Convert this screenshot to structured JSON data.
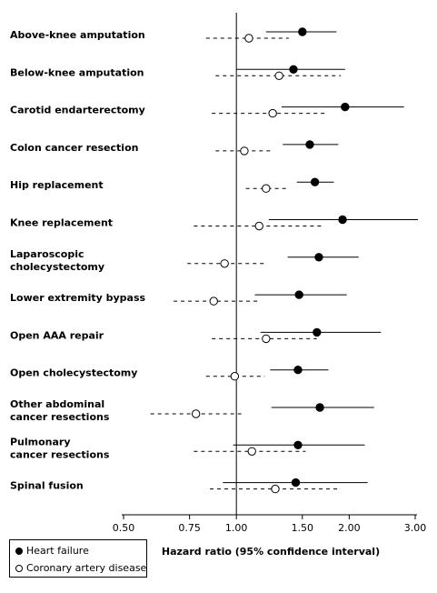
{
  "chart_data": {
    "type": "forest",
    "xlabel": "Hazard ratio (95% confidence interval)",
    "x_scale": "log",
    "xlim": [
      0.5,
      3.0
    ],
    "x_ticks": [
      {
        "value": 0.5,
        "label": "0.50"
      },
      {
        "value": 0.75,
        "label": "0.75"
      },
      {
        "value": 1.0,
        "label": "1.00"
      },
      {
        "value": 1.5,
        "label": "1.50"
      },
      {
        "value": 2.0,
        "label": "2.00"
      },
      {
        "value": 3.0,
        "label": "3.00"
      }
    ],
    "reference_line": 1.0,
    "legend_position": "bottom-left",
    "series": [
      {
        "name": "Heart failure",
        "marker": "filled-circle",
        "line": "solid"
      },
      {
        "name": "Coronary artery disease",
        "marker": "open-circle",
        "line": "dashed"
      }
    ],
    "rows": [
      {
        "label": [
          "Above-knee amputation"
        ],
        "hf": {
          "est": 1.5,
          "lo": 1.2,
          "hi": 1.85
        },
        "cad": {
          "est": 1.08,
          "lo": 0.83,
          "hi": 1.38
        }
      },
      {
        "label": [
          "Below-knee amputation"
        ],
        "hf": {
          "est": 1.42,
          "lo": 1.0,
          "hi": 1.95
        },
        "cad": {
          "est": 1.3,
          "lo": 0.88,
          "hi": 1.9
        }
      },
      {
        "label": [
          "Carotid endarterectomy"
        ],
        "hf": {
          "est": 1.95,
          "lo": 1.32,
          "hi": 2.8
        },
        "cad": {
          "est": 1.25,
          "lo": 0.86,
          "hi": 1.75
        }
      },
      {
        "label": [
          "Colon cancer resection"
        ],
        "hf": {
          "est": 1.57,
          "lo": 1.33,
          "hi": 1.87
        },
        "cad": {
          "est": 1.05,
          "lo": 0.88,
          "hi": 1.24
        }
      },
      {
        "label": [
          "Hip replacement"
        ],
        "hf": {
          "est": 1.62,
          "lo": 1.45,
          "hi": 1.82
        },
        "cad": {
          "est": 1.2,
          "lo": 1.06,
          "hi": 1.36
        }
      },
      {
        "label": [
          "Knee replacement"
        ],
        "hf": {
          "est": 1.92,
          "lo": 1.22,
          "hi": 3.05
        },
        "cad": {
          "est": 1.15,
          "lo": 0.77,
          "hi": 1.72
        }
      },
      {
        "label": [
          "Laparoscopic",
          "cholecystectomy"
        ],
        "hf": {
          "est": 1.66,
          "lo": 1.37,
          "hi": 2.12
        },
        "cad": {
          "est": 0.93,
          "lo": 0.74,
          "hi": 1.2
        }
      },
      {
        "label": [
          "Lower extremity bypass"
        ],
        "hf": {
          "est": 1.47,
          "lo": 1.12,
          "hi": 1.97
        },
        "cad": {
          "est": 0.87,
          "lo": 0.68,
          "hi": 1.16
        }
      },
      {
        "label": [
          "Open AAA repair"
        ],
        "hf": {
          "est": 1.64,
          "lo": 1.16,
          "hi": 2.43
        },
        "cad": {
          "est": 1.2,
          "lo": 0.86,
          "hi": 1.64
        }
      },
      {
        "label": [
          "Open cholecystectomy"
        ],
        "hf": {
          "est": 1.46,
          "lo": 1.23,
          "hi": 1.76
        },
        "cad": {
          "est": 0.99,
          "lo": 0.83,
          "hi": 1.19
        }
      },
      {
        "label": [
          "Other abdominal",
          "cancer resections"
        ],
        "hf": {
          "est": 1.67,
          "lo": 1.24,
          "hi": 2.33
        },
        "cad": {
          "est": 0.78,
          "lo": 0.59,
          "hi": 1.04
        }
      },
      {
        "label": [
          "Pulmonary",
          "cancer resections"
        ],
        "hf": {
          "est": 1.46,
          "lo": 0.98,
          "hi": 2.2
        },
        "cad": {
          "est": 1.1,
          "lo": 0.77,
          "hi": 1.53
        }
      },
      {
        "label": [
          "Spinal fusion"
        ],
        "hf": {
          "est": 1.44,
          "lo": 0.92,
          "hi": 2.24
        },
        "cad": {
          "est": 1.27,
          "lo": 0.85,
          "hi": 1.87
        }
      }
    ]
  }
}
